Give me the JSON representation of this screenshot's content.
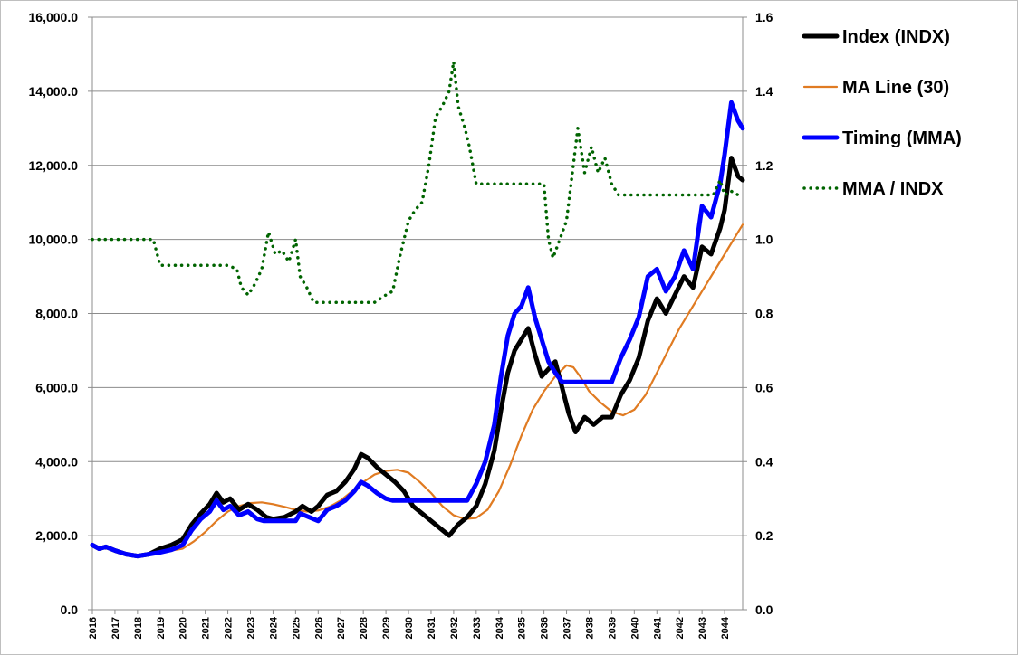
{
  "chart_data": {
    "type": "line",
    "title": "",
    "xlabel": "",
    "ylabel": "",
    "y2label": "",
    "grid": "horizontal",
    "legend_position": "top-right",
    "x_categories": [
      "2016",
      "2017",
      "2018",
      "2019",
      "2020",
      "2021",
      "2022",
      "2023",
      "2024",
      "2025",
      "2026",
      "2027",
      "2028",
      "2029",
      "2030",
      "2031",
      "2032",
      "2033",
      "2034",
      "2035",
      "2036",
      "2037",
      "2038",
      "2039",
      "2040",
      "2041",
      "2042",
      "2043",
      "2044"
    ],
    "xlim": [
      2016,
      2044.8
    ],
    "ylim_left": [
      0,
      16000
    ],
    "ylim_right": [
      0,
      1.6
    ],
    "y_ticks_left": [
      "0.0",
      "2,000.0",
      "4,000.0",
      "6,000.0",
      "8,000.0",
      "10,000.0",
      "12,000.0",
      "14,000.0",
      "16,000.0"
    ],
    "y_ticks_right": [
      "0.0",
      "0.2",
      "0.4",
      "0.6",
      "0.8",
      "1.0",
      "1.2",
      "1.4",
      "1.6"
    ],
    "series": [
      {
        "name": "Index (INDX)",
        "axis": "left",
        "color": "#000000",
        "style": "solid-thick",
        "points": [
          [
            2016.0,
            1750
          ],
          [
            2016.3,
            1650
          ],
          [
            2016.6,
            1700
          ],
          [
            2017.0,
            1600
          ],
          [
            2017.5,
            1500
          ],
          [
            2018.0,
            1450
          ],
          [
            2018.5,
            1500
          ],
          [
            2019.0,
            1650
          ],
          [
            2019.5,
            1750
          ],
          [
            2020.0,
            1900
          ],
          [
            2020.4,
            2300
          ],
          [
            2020.8,
            2600
          ],
          [
            2021.2,
            2850
          ],
          [
            2021.5,
            3150
          ],
          [
            2021.8,
            2900
          ],
          [
            2022.1,
            3000
          ],
          [
            2022.5,
            2700
          ],
          [
            2022.9,
            2850
          ],
          [
            2023.3,
            2700
          ],
          [
            2023.7,
            2500
          ],
          [
            2024.0,
            2450
          ],
          [
            2024.5,
            2500
          ],
          [
            2025.0,
            2650
          ],
          [
            2025.3,
            2800
          ],
          [
            2025.7,
            2650
          ],
          [
            2026.0,
            2800
          ],
          [
            2026.4,
            3100
          ],
          [
            2026.8,
            3200
          ],
          [
            2027.2,
            3450
          ],
          [
            2027.6,
            3800
          ],
          [
            2027.9,
            4200
          ],
          [
            2028.2,
            4100
          ],
          [
            2028.6,
            3850
          ],
          [
            2029.0,
            3650
          ],
          [
            2029.4,
            3450
          ],
          [
            2029.8,
            3200
          ],
          [
            2030.2,
            2800
          ],
          [
            2030.6,
            2600
          ],
          [
            2031.0,
            2400
          ],
          [
            2031.4,
            2200
          ],
          [
            2031.8,
            2000
          ],
          [
            2032.2,
            2300
          ],
          [
            2032.6,
            2500
          ],
          [
            2033.0,
            2800
          ],
          [
            2033.4,
            3400
          ],
          [
            2033.8,
            4300
          ],
          [
            2034.1,
            5400
          ],
          [
            2034.4,
            6400
          ],
          [
            2034.7,
            7000
          ],
          [
            2035.0,
            7300
          ],
          [
            2035.3,
            7600
          ],
          [
            2035.6,
            6900
          ],
          [
            2035.9,
            6300
          ],
          [
            2036.2,
            6500
          ],
          [
            2036.5,
            6700
          ],
          [
            2036.8,
            6000
          ],
          [
            2037.1,
            5300
          ],
          [
            2037.4,
            4800
          ],
          [
            2037.8,
            5200
          ],
          [
            2038.2,
            5000
          ],
          [
            2038.6,
            5200
          ],
          [
            2039.0,
            5200
          ],
          [
            2039.4,
            5800
          ],
          [
            2039.8,
            6200
          ],
          [
            2040.2,
            6800
          ],
          [
            2040.6,
            7800
          ],
          [
            2041.0,
            8400
          ],
          [
            2041.4,
            8000
          ],
          [
            2041.8,
            8500
          ],
          [
            2042.2,
            9000
          ],
          [
            2042.6,
            8700
          ],
          [
            2043.0,
            9800
          ],
          [
            2043.4,
            9600
          ],
          [
            2043.8,
            10300
          ],
          [
            2044.0,
            10800
          ],
          [
            2044.3,
            12200
          ],
          [
            2044.6,
            11700
          ],
          [
            2044.8,
            11600
          ]
        ]
      },
      {
        "name": "MA Line (30)",
        "axis": "left",
        "color": "#e07b22",
        "style": "solid-thin",
        "points": [
          [
            2019.5,
            1600
          ],
          [
            2020.0,
            1650
          ],
          [
            2020.5,
            1850
          ],
          [
            2021.0,
            2100
          ],
          [
            2021.5,
            2400
          ],
          [
            2022.0,
            2650
          ],
          [
            2022.5,
            2800
          ],
          [
            2023.0,
            2880
          ],
          [
            2023.5,
            2900
          ],
          [
            2024.0,
            2850
          ],
          [
            2024.5,
            2780
          ],
          [
            2025.0,
            2700
          ],
          [
            2025.5,
            2650
          ],
          [
            2026.0,
            2680
          ],
          [
            2026.5,
            2780
          ],
          [
            2027.0,
            2950
          ],
          [
            2027.5,
            3200
          ],
          [
            2028.0,
            3450
          ],
          [
            2028.5,
            3650
          ],
          [
            2029.0,
            3750
          ],
          [
            2029.5,
            3780
          ],
          [
            2030.0,
            3700
          ],
          [
            2030.5,
            3450
          ],
          [
            2031.0,
            3150
          ],
          [
            2031.5,
            2800
          ],
          [
            2032.0,
            2550
          ],
          [
            2032.5,
            2450
          ],
          [
            2033.0,
            2480
          ],
          [
            2033.5,
            2700
          ],
          [
            2034.0,
            3200
          ],
          [
            2034.5,
            3900
          ],
          [
            2035.0,
            4700
          ],
          [
            2035.5,
            5400
          ],
          [
            2036.0,
            5900
          ],
          [
            2036.5,
            6300
          ],
          [
            2037.0,
            6600
          ],
          [
            2037.3,
            6550
          ],
          [
            2037.6,
            6300
          ],
          [
            2038.0,
            5900
          ],
          [
            2038.5,
            5600
          ],
          [
            2039.0,
            5350
          ],
          [
            2039.5,
            5250
          ],
          [
            2040.0,
            5400
          ],
          [
            2040.5,
            5800
          ],
          [
            2041.0,
            6400
          ],
          [
            2041.5,
            7000
          ],
          [
            2042.0,
            7600
          ],
          [
            2042.5,
            8100
          ],
          [
            2043.0,
            8600
          ],
          [
            2043.5,
            9100
          ],
          [
            2044.0,
            9600
          ],
          [
            2044.5,
            10100
          ],
          [
            2044.8,
            10400
          ]
        ]
      },
      {
        "name": "Timing (MMA)",
        "axis": "left",
        "color": "#0000ff",
        "style": "solid-thick",
        "points": [
          [
            2016.0,
            1750
          ],
          [
            2016.3,
            1650
          ],
          [
            2016.6,
            1700
          ],
          [
            2017.0,
            1600
          ],
          [
            2017.5,
            1500
          ],
          [
            2018.0,
            1450
          ],
          [
            2018.5,
            1500
          ],
          [
            2019.0,
            1550
          ],
          [
            2019.5,
            1620
          ],
          [
            2020.0,
            1750
          ],
          [
            2020.4,
            2150
          ],
          [
            2020.8,
            2450
          ],
          [
            2021.2,
            2650
          ],
          [
            2021.5,
            2950
          ],
          [
            2021.8,
            2700
          ],
          [
            2022.1,
            2800
          ],
          [
            2022.5,
            2550
          ],
          [
            2022.9,
            2650
          ],
          [
            2023.3,
            2450
          ],
          [
            2023.6,
            2400
          ],
          [
            2024.0,
            2400
          ],
          [
            2024.5,
            2400
          ],
          [
            2025.0,
            2400
          ],
          [
            2025.2,
            2600
          ],
          [
            2025.6,
            2500
          ],
          [
            2026.0,
            2400
          ],
          [
            2026.4,
            2700
          ],
          [
            2026.8,
            2800
          ],
          [
            2027.2,
            2950
          ],
          [
            2027.6,
            3200
          ],
          [
            2027.9,
            3450
          ],
          [
            2028.2,
            3350
          ],
          [
            2028.6,
            3150
          ],
          [
            2029.0,
            3000
          ],
          [
            2029.3,
            2950
          ],
          [
            2030.0,
            2950
          ],
          [
            2031.0,
            2950
          ],
          [
            2032.0,
            2950
          ],
          [
            2032.6,
            2950
          ],
          [
            2033.0,
            3400
          ],
          [
            2033.4,
            4000
          ],
          [
            2033.8,
            5000
          ],
          [
            2034.1,
            6300
          ],
          [
            2034.4,
            7400
          ],
          [
            2034.7,
            8000
          ],
          [
            2035.0,
            8200
          ],
          [
            2035.3,
            8700
          ],
          [
            2035.6,
            7900
          ],
          [
            2035.9,
            7300
          ],
          [
            2036.2,
            6700
          ],
          [
            2036.5,
            6400
          ],
          [
            2036.8,
            6150
          ],
          [
            2037.5,
            6150
          ],
          [
            2038.5,
            6150
          ],
          [
            2039.0,
            6150
          ],
          [
            2039.4,
            6800
          ],
          [
            2039.8,
            7300
          ],
          [
            2040.2,
            7900
          ],
          [
            2040.6,
            9000
          ],
          [
            2041.0,
            9200
          ],
          [
            2041.4,
            8600
          ],
          [
            2041.8,
            9000
          ],
          [
            2042.2,
            9700
          ],
          [
            2042.6,
            9200
          ],
          [
            2043.0,
            10900
          ],
          [
            2043.4,
            10600
          ],
          [
            2043.8,
            11500
          ],
          [
            2044.0,
            12300
          ],
          [
            2044.3,
            13700
          ],
          [
            2044.6,
            13200
          ],
          [
            2044.8,
            13000
          ]
        ]
      },
      {
        "name": "MMA / INDX",
        "axis": "right",
        "color": "#006400",
        "style": "dotted",
        "points": [
          [
            2016.0,
            1.0
          ],
          [
            2017.0,
            1.0
          ],
          [
            2018.0,
            1.0
          ],
          [
            2018.7,
            1.0
          ],
          [
            2019.0,
            0.93
          ],
          [
            2020.0,
            0.93
          ],
          [
            2021.0,
            0.93
          ],
          [
            2022.0,
            0.93
          ],
          [
            2022.4,
            0.92
          ],
          [
            2022.6,
            0.87
          ],
          [
            2022.9,
            0.85
          ],
          [
            2023.2,
            0.88
          ],
          [
            2023.5,
            0.92
          ],
          [
            2023.8,
            1.02
          ],
          [
            2024.1,
            0.96
          ],
          [
            2024.4,
            0.97
          ],
          [
            2024.7,
            0.94
          ],
          [
            2025.0,
            1.0
          ],
          [
            2025.2,
            0.9
          ],
          [
            2025.5,
            0.87
          ],
          [
            2025.8,
            0.83
          ],
          [
            2026.5,
            0.83
          ],
          [
            2027.5,
            0.83
          ],
          [
            2028.5,
            0.83
          ],
          [
            2029.0,
            0.85
          ],
          [
            2029.3,
            0.86
          ],
          [
            2029.6,
            0.95
          ],
          [
            2030.0,
            1.05
          ],
          [
            2030.3,
            1.08
          ],
          [
            2030.6,
            1.1
          ],
          [
            2030.9,
            1.2
          ],
          [
            2031.2,
            1.33
          ],
          [
            2031.5,
            1.36
          ],
          [
            2031.8,
            1.4
          ],
          [
            2032.0,
            1.48
          ],
          [
            2032.2,
            1.36
          ],
          [
            2032.5,
            1.3
          ],
          [
            2032.7,
            1.25
          ],
          [
            2033.0,
            1.15
          ],
          [
            2034.0,
            1.15
          ],
          [
            2035.0,
            1.15
          ],
          [
            2035.5,
            1.15
          ],
          [
            2036.0,
            1.15
          ],
          [
            2036.2,
            1.0
          ],
          [
            2036.4,
            0.95
          ],
          [
            2036.7,
            1.0
          ],
          [
            2037.0,
            1.05
          ],
          [
            2037.3,
            1.2
          ],
          [
            2037.5,
            1.3
          ],
          [
            2037.8,
            1.18
          ],
          [
            2038.1,
            1.25
          ],
          [
            2038.4,
            1.18
          ],
          [
            2038.7,
            1.22
          ],
          [
            2039.0,
            1.15
          ],
          [
            2039.3,
            1.12
          ],
          [
            2040.0,
            1.12
          ],
          [
            2041.0,
            1.12
          ],
          [
            2042.0,
            1.12
          ],
          [
            2043.0,
            1.12
          ],
          [
            2043.5,
            1.12
          ],
          [
            2043.8,
            1.16
          ],
          [
            2044.0,
            1.12
          ],
          [
            2044.3,
            1.13
          ],
          [
            2044.6,
            1.12
          ],
          [
            2044.8,
            1.12
          ]
        ]
      }
    ]
  }
}
